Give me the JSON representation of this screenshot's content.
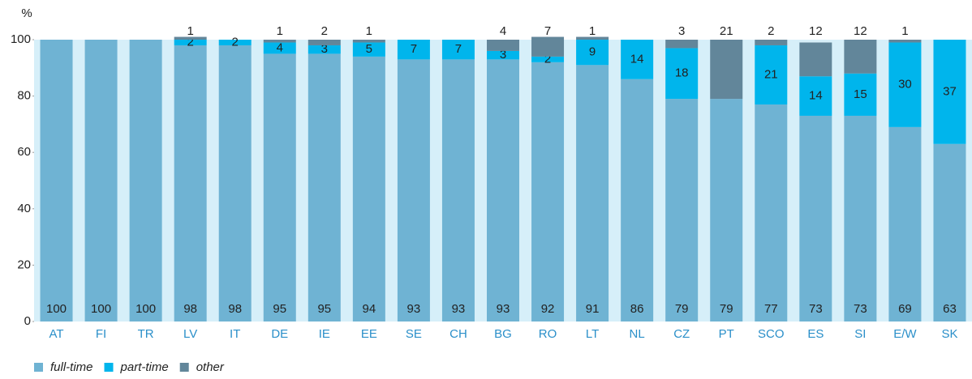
{
  "chart_data": {
    "type": "stacked_bar",
    "ylabel": "%",
    "categories": [
      "AT",
      "FI",
      "TR",
      "LV",
      "IT",
      "DE",
      "IE",
      "EE",
      "SE",
      "CH",
      "BG",
      "RO",
      "LT",
      "NL",
      "CZ",
      "PT",
      "SCO",
      "ES",
      "SI",
      "E/W",
      "SK"
    ],
    "series": [
      {
        "name": "full-time",
        "color": "#6fb3d3",
        "values": [
          100,
          100,
          100,
          98,
          98,
          95,
          95,
          94,
          93,
          93,
          93,
          92,
          91,
          86,
          79,
          79,
          77,
          73,
          73,
          69,
          63
        ]
      },
      {
        "name": "part-time",
        "color": "#00b5ec",
        "values": [
          null,
          null,
          null,
          2,
          2,
          4,
          3,
          5,
          7,
          7,
          3,
          2,
          9,
          14,
          18,
          null,
          21,
          14,
          15,
          30,
          37
        ]
      },
      {
        "name": "other",
        "color": "#62869a",
        "values": [
          null,
          null,
          null,
          1,
          null,
          1,
          2,
          1,
          null,
          null,
          4,
          7,
          1,
          null,
          3,
          21,
          2,
          12,
          12,
          1,
          null
        ]
      }
    ],
    "ylim": [
      0,
      100
    ],
    "yticks": [
      0,
      20,
      40,
      60,
      80,
      100
    ],
    "background": "#d6eff9"
  }
}
